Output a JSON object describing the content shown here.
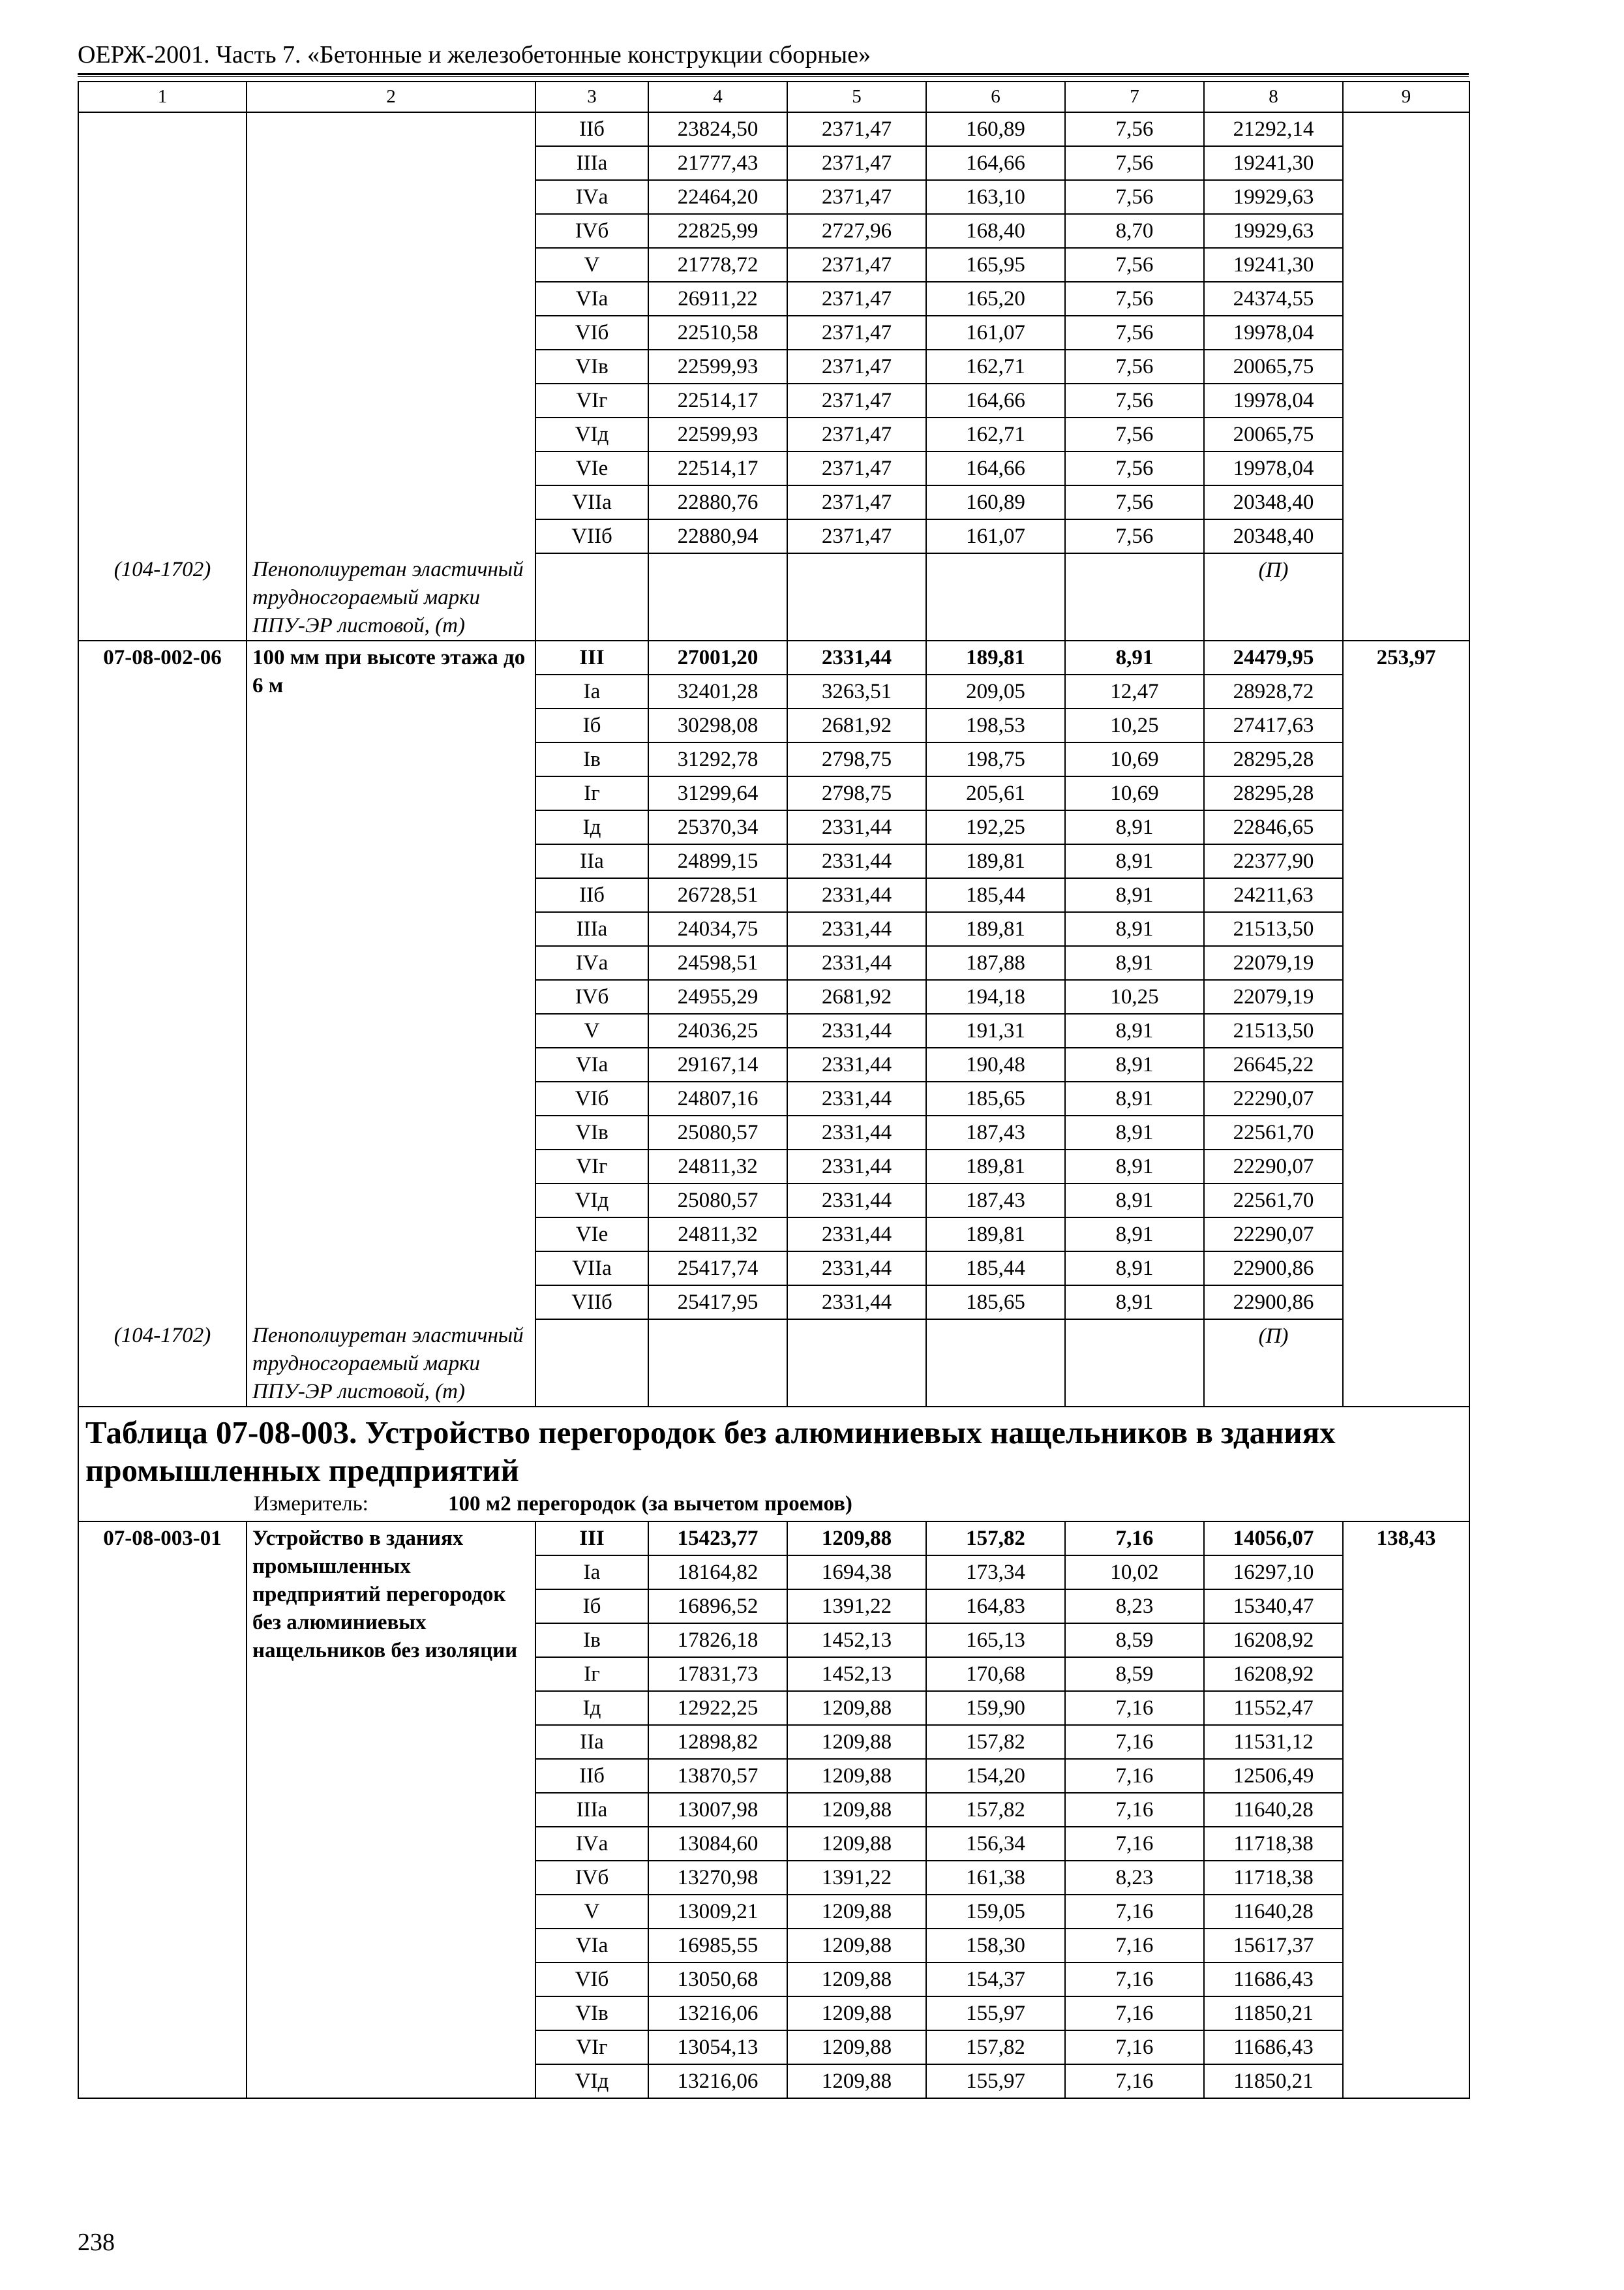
{
  "header": {
    "title": "ОЕРЖ-2001. Часть 7. «Бетонные и железобетонные конструкции сборные»",
    "page_number": "238"
  },
  "table": {
    "columns": [
      "1",
      "2",
      "3",
      "4",
      "5",
      "6",
      "7",
      "8",
      "9"
    ],
    "blocks": [
      {
        "rows": [
          [
            "IIб",
            "23824,50",
            "2371,47",
            "160,89",
            "7,56",
            "21292,14"
          ],
          [
            "IIIа",
            "21777,43",
            "2371,47",
            "164,66",
            "7,56",
            "19241,30"
          ],
          [
            "IVа",
            "22464,20",
            "2371,47",
            "163,10",
            "7,56",
            "19929,63"
          ],
          [
            "IVб",
            "22825,99",
            "2727,96",
            "168,40",
            "8,70",
            "19929,63"
          ],
          [
            "V",
            "21778,72",
            "2371,47",
            "165,95",
            "7,56",
            "19241,30"
          ],
          [
            "VIа",
            "26911,22",
            "2371,47",
            "165,20",
            "7,56",
            "24374,55"
          ],
          [
            "VIб",
            "22510,58",
            "2371,47",
            "161,07",
            "7,56",
            "19978,04"
          ],
          [
            "VIв",
            "22599,93",
            "2371,47",
            "162,71",
            "7,56",
            "20065,75"
          ],
          [
            "VIг",
            "22514,17",
            "2371,47",
            "164,66",
            "7,56",
            "19978,04"
          ],
          [
            "VIд",
            "22599,93",
            "2371,47",
            "162,71",
            "7,56",
            "20065,75"
          ],
          [
            "VIе",
            "22514,17",
            "2371,47",
            "164,66",
            "7,56",
            "19978,04"
          ],
          [
            "VIIа",
            "22880,76",
            "2371,47",
            "160,89",
            "7,56",
            "20348,40"
          ],
          [
            "VIIб",
            "22880,94",
            "2371,47",
            "161,07",
            "7,56",
            "20348,40"
          ]
        ],
        "material": {
          "code": "(104-1702)",
          "name": "Пенополиуретан эластичный трудносгораемый марки ППУ-ЭР листовой, (т)",
          "unit": "(П)"
        }
      },
      {
        "code": "07-08-002-06",
        "description": "100 мм при высоте этажа до 6 м",
        "price": "253,97",
        "rows": [
          [
            "III",
            "27001,20",
            "2331,44",
            "189,81",
            "8,91",
            "24479,95"
          ],
          [
            "Iа",
            "32401,28",
            "3263,51",
            "209,05",
            "12,47",
            "28928,72"
          ],
          [
            "Iб",
            "30298,08",
            "2681,92",
            "198,53",
            "10,25",
            "27417,63"
          ],
          [
            "Iв",
            "31292,78",
            "2798,75",
            "198,75",
            "10,69",
            "28295,28"
          ],
          [
            "Iг",
            "31299,64",
            "2798,75",
            "205,61",
            "10,69",
            "28295,28"
          ],
          [
            "Iд",
            "25370,34",
            "2331,44",
            "192,25",
            "8,91",
            "22846,65"
          ],
          [
            "IIа",
            "24899,15",
            "2331,44",
            "189,81",
            "8,91",
            "22377,90"
          ],
          [
            "IIб",
            "26728,51",
            "2331,44",
            "185,44",
            "8,91",
            "24211,63"
          ],
          [
            "IIIа",
            "24034,75",
            "2331,44",
            "189,81",
            "8,91",
            "21513,50"
          ],
          [
            "IVа",
            "24598,51",
            "2331,44",
            "187,88",
            "8,91",
            "22079,19"
          ],
          [
            "IVб",
            "24955,29",
            "2681,92",
            "194,18",
            "10,25",
            "22079,19"
          ],
          [
            "V",
            "24036,25",
            "2331,44",
            "191,31",
            "8,91",
            "21513,50"
          ],
          [
            "VIа",
            "29167,14",
            "2331,44",
            "190,48",
            "8,91",
            "26645,22"
          ],
          [
            "VIб",
            "24807,16",
            "2331,44",
            "185,65",
            "8,91",
            "22290,07"
          ],
          [
            "VIв",
            "25080,57",
            "2331,44",
            "187,43",
            "8,91",
            "22561,70"
          ],
          [
            "VIг",
            "24811,32",
            "2331,44",
            "189,81",
            "8,91",
            "22290,07"
          ],
          [
            "VIд",
            "25080,57",
            "2331,44",
            "187,43",
            "8,91",
            "22561,70"
          ],
          [
            "VIе",
            "24811,32",
            "2331,44",
            "189,81",
            "8,91",
            "22290,07"
          ],
          [
            "VIIа",
            "25417,74",
            "2331,44",
            "185,44",
            "8,91",
            "22900,86"
          ],
          [
            "VIIб",
            "25417,95",
            "2331,44",
            "185,65",
            "8,91",
            "22900,86"
          ]
        ],
        "material": {
          "code": "(104-1702)",
          "name": "Пенополиуретан эластичный трудносгораемый марки ППУ-ЭР листовой, (т)",
          "unit": "(П)"
        }
      }
    ]
  },
  "table2": {
    "title": "Таблица 07-08-003. Устройство перегородок без алюминиевых нащельников в зданиях промышленных предприятий",
    "measure_label": "Измеритель:",
    "measure": "100 м2 перегородок (за вычетом проемов)",
    "blocks": [
      {
        "code": "07-08-003-01",
        "description": "Устройство в зданиях промышленных предприятий перегородок без алюминиевых нащельников без изоляции",
        "price": "138,43",
        "rows": [
          [
            "III",
            "15423,77",
            "1209,88",
            "157,82",
            "7,16",
            "14056,07"
          ],
          [
            "Iа",
            "18164,82",
            "1694,38",
            "173,34",
            "10,02",
            "16297,10"
          ],
          [
            "Iб",
            "16896,52",
            "1391,22",
            "164,83",
            "8,23",
            "15340,47"
          ],
          [
            "Iв",
            "17826,18",
            "1452,13",
            "165,13",
            "8,59",
            "16208,92"
          ],
          [
            "Iг",
            "17831,73",
            "1452,13",
            "170,68",
            "8,59",
            "16208,92"
          ],
          [
            "Iд",
            "12922,25",
            "1209,88",
            "159,90",
            "7,16",
            "11552,47"
          ],
          [
            "IIа",
            "12898,82",
            "1209,88",
            "157,82",
            "7,16",
            "11531,12"
          ],
          [
            "IIб",
            "13870,57",
            "1209,88",
            "154,20",
            "7,16",
            "12506,49"
          ],
          [
            "IIIа",
            "13007,98",
            "1209,88",
            "157,82",
            "7,16",
            "11640,28"
          ],
          [
            "IVа",
            "13084,60",
            "1209,88",
            "156,34",
            "7,16",
            "11718,38"
          ],
          [
            "IVб",
            "13270,98",
            "1391,22",
            "161,38",
            "8,23",
            "11718,38"
          ],
          [
            "V",
            "13009,21",
            "1209,88",
            "159,05",
            "7,16",
            "11640,28"
          ],
          [
            "VIа",
            "16985,55",
            "1209,88",
            "158,30",
            "7,16",
            "15617,37"
          ],
          [
            "VIб",
            "13050,68",
            "1209,88",
            "154,37",
            "7,16",
            "11686,43"
          ],
          [
            "VIв",
            "13216,06",
            "1209,88",
            "155,97",
            "7,16",
            "11850,21"
          ],
          [
            "VIг",
            "13054,13",
            "1209,88",
            "157,82",
            "7,16",
            "11686,43"
          ],
          [
            "VIд",
            "13216,06",
            "1209,88",
            "155,97",
            "7,16",
            "11850,21"
          ]
        ]
      }
    ]
  }
}
